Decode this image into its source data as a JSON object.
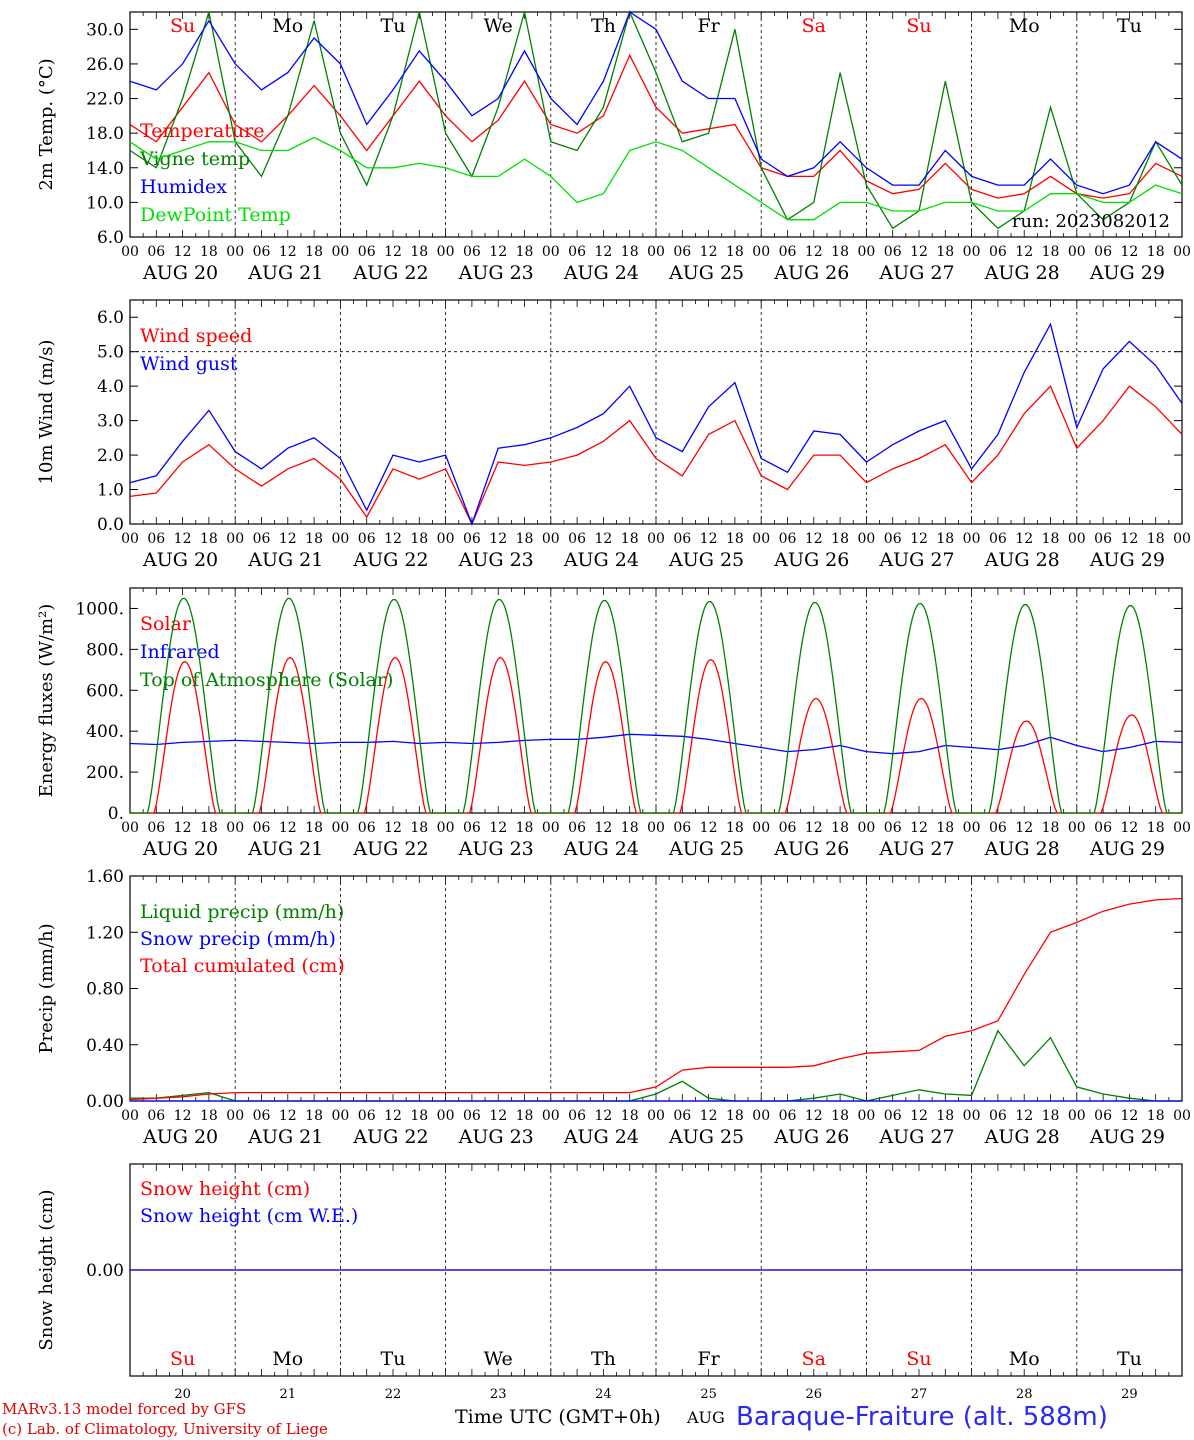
{
  "days": {
    "names": [
      "Su",
      "Mo",
      "Tu",
      "We",
      "Th",
      "Fr",
      "Sa",
      "Su",
      "Mo",
      "Tu"
    ],
    "weekend": [
      true,
      false,
      false,
      false,
      false,
      false,
      true,
      true,
      false,
      false
    ],
    "dates": [
      "AUG 20",
      "AUG 21",
      "AUG 22",
      "AUG 23",
      "AUG 24",
      "AUG 25",
      "AUG 26",
      "AUG 27",
      "AUG 28",
      "AUG 29"
    ],
    "numbers": [
      "20",
      "21",
      "22",
      "23",
      "24",
      "25",
      "26",
      "27",
      "28",
      "29"
    ],
    "hour_ticks": [
      "00",
      "06",
      "12",
      "18"
    ],
    "end_tick": "00"
  },
  "colors": {
    "red": "#ff0000",
    "green": "#008000",
    "blue": "#0000ff",
    "lightgreen": "#00e000",
    "purple": "#8000c0"
  },
  "chart_data": [
    {
      "type": "line",
      "ylabel": "2m Temp. (°C)",
      "ylim": [
        6.0,
        32.0
      ],
      "yticks": [
        "6.0",
        "10.0",
        "14.0",
        "18.0",
        "22.0",
        "26.0",
        "30.0"
      ],
      "annotation": "run: 2023082012",
      "x_hours_step": 6,
      "series": [
        {
          "name": "Temperature",
          "color": "#ff0000",
          "values": [
            19,
            17,
            21,
            25,
            19,
            17,
            20,
            23.5,
            20,
            16,
            20,
            24,
            20,
            17,
            19.5,
            24,
            19,
            18,
            20,
            27,
            21,
            18,
            18.5,
            19,
            14,
            13,
            13,
            16,
            12.5,
            11,
            11.5,
            14.5,
            11.5,
            10.5,
            11,
            13,
            11,
            10.5,
            11,
            14.5,
            13
          ]
        },
        {
          "name": "Vigne temp",
          "color": "#008000",
          "values": [
            16,
            14,
            22,
            32,
            17,
            13,
            20,
            31,
            18,
            12,
            20,
            32,
            18,
            13,
            21,
            32,
            17,
            16,
            21,
            32,
            25,
            17,
            18,
            30,
            14,
            8,
            10,
            25,
            12,
            7,
            9,
            24,
            10,
            7,
            9,
            21,
            11,
            8,
            10,
            17,
            12
          ]
        },
        {
          "name": "Humidex",
          "color": "#0000ff",
          "values": [
            24,
            23,
            26,
            31,
            26,
            23,
            25,
            29,
            26,
            19,
            23,
            27.5,
            24,
            20,
            22,
            27.5,
            22,
            19,
            24,
            32,
            30,
            24,
            22,
            22,
            15,
            13,
            14,
            17,
            14,
            12,
            12,
            16,
            13,
            12,
            12,
            15,
            12,
            11,
            12,
            17,
            15
          ]
        },
        {
          "name": "DewPoint Temp",
          "color": "#00e000",
          "values": [
            17,
            15,
            16,
            17,
            17,
            16,
            16,
            17.5,
            16,
            14,
            14,
            14.5,
            14,
            13,
            13,
            15,
            13,
            10,
            11,
            16,
            17,
            16,
            14,
            12,
            10,
            8,
            8,
            10,
            10,
            9,
            9,
            10,
            10,
            9,
            9,
            11,
            11,
            10,
            10,
            12,
            11
          ]
        }
      ]
    },
    {
      "type": "line",
      "ylabel": "10m Wind (m/s)",
      "ylim": [
        0.0,
        6.5
      ],
      "yticks": [
        "0.0",
        "1.0",
        "2.0",
        "3.0",
        "4.0",
        "5.0",
        "6.0"
      ],
      "hline": 5.0,
      "series": [
        {
          "name": "Wind speed",
          "color": "#ff0000",
          "values": [
            0.8,
            0.9,
            1.8,
            2.3,
            1.6,
            1.1,
            1.6,
            1.9,
            1.3,
            0.2,
            1.6,
            1.3,
            1.6,
            0.0,
            1.8,
            1.7,
            1.8,
            2.0,
            2.4,
            3.0,
            1.9,
            1.4,
            2.6,
            3.0,
            1.4,
            1.0,
            2.0,
            2.0,
            1.2,
            1.6,
            1.9,
            2.3,
            1.2,
            2.0,
            3.2,
            4.0,
            2.2,
            3.0,
            4.0,
            3.4,
            2.6
          ]
        },
        {
          "name": "Wind gust",
          "color": "#0000ff",
          "values": [
            1.2,
            1.4,
            2.4,
            3.3,
            2.1,
            1.6,
            2.2,
            2.5,
            1.9,
            0.4,
            2.0,
            1.8,
            2.0,
            0.0,
            2.2,
            2.3,
            2.5,
            2.8,
            3.2,
            4.0,
            2.5,
            2.1,
            3.4,
            4.1,
            1.9,
            1.5,
            2.7,
            2.6,
            1.8,
            2.3,
            2.7,
            3.0,
            1.6,
            2.6,
            4.4,
            5.8,
            2.8,
            4.5,
            5.3,
            4.6,
            3.5
          ]
        }
      ]
    },
    {
      "type": "line",
      "ylabel": "Energy fluxes (W/m²)",
      "ylim": [
        0,
        1100
      ],
      "yticks": [
        "0.",
        "200.",
        "400.",
        "600.",
        "800.",
        "1000."
      ],
      "series": [
        {
          "name": "Solar",
          "color": "#ff0000",
          "peaks": [
            740,
            760,
            760,
            760,
            740,
            750,
            560,
            560,
            450,
            480
          ]
        },
        {
          "name": "Infrared",
          "color": "#0000ff",
          "values": [
            340,
            335,
            345,
            350,
            355,
            350,
            345,
            340,
            345,
            345,
            350,
            340,
            345,
            340,
            345,
            355,
            360,
            360,
            370,
            385,
            380,
            375,
            360,
            340,
            320,
            300,
            310,
            330,
            300,
            290,
            300,
            330,
            320,
            310,
            330,
            370,
            330,
            300,
            320,
            350,
            345
          ]
        },
        {
          "name": "Top of Atmosphere (Solar)",
          "color": "#008000",
          "peaks": [
            1050,
            1050,
            1045,
            1045,
            1040,
            1035,
            1030,
            1025,
            1020,
            1015
          ]
        }
      ]
    },
    {
      "type": "line",
      "ylabel": "Precip (mm/h)",
      "ylim": [
        0.0,
        1.6
      ],
      "yticks": [
        "0.00",
        "0.40",
        "0.80",
        "1.20",
        "1.60"
      ],
      "series": [
        {
          "name": "Liquid precip (mm/h)",
          "color": "#008000",
          "values": [
            0.02,
            0.02,
            0.04,
            0.06,
            0.0,
            0.0,
            0.0,
            0.0,
            0.0,
            0.0,
            0.0,
            0.0,
            0.0,
            0.0,
            0.0,
            0.0,
            0.0,
            0.0,
            0.0,
            0.0,
            0.05,
            0.14,
            0.02,
            0.0,
            0.0,
            0.0,
            0.02,
            0.05,
            0.0,
            0.04,
            0.08,
            0.05,
            0.04,
            0.5,
            0.25,
            0.45,
            0.1,
            0.05,
            0.02,
            0.0,
            0.0
          ]
        },
        {
          "name": "Snow precip (mm/h)",
          "color": "#0000ff",
          "values": [
            0,
            0,
            0,
            0,
            0,
            0,
            0,
            0,
            0,
            0,
            0,
            0,
            0,
            0,
            0,
            0,
            0,
            0,
            0,
            0,
            0,
            0,
            0,
            0,
            0,
            0,
            0,
            0,
            0,
            0,
            0,
            0,
            0,
            0,
            0,
            0,
            0,
            0,
            0,
            0,
            0
          ]
        },
        {
          "name": "Total cumulated (cm)",
          "color": "#ff0000",
          "values": [
            0.01,
            0.02,
            0.03,
            0.05,
            0.06,
            0.06,
            0.06,
            0.06,
            0.06,
            0.06,
            0.06,
            0.06,
            0.06,
            0.06,
            0.06,
            0.06,
            0.06,
            0.06,
            0.06,
            0.06,
            0.1,
            0.22,
            0.24,
            0.24,
            0.24,
            0.24,
            0.25,
            0.3,
            0.34,
            0.35,
            0.36,
            0.46,
            0.5,
            0.57,
            0.9,
            1.2,
            1.27,
            1.35,
            1.4,
            1.43,
            1.44
          ]
        }
      ]
    },
    {
      "type": "line",
      "ylabel": "Snow height (cm)",
      "ylim": [
        -1.0,
        1.0
      ],
      "yticks": [
        "0.00"
      ],
      "series": [
        {
          "name": "Snow height (cm)",
          "color": "#ff0000",
          "values": [
            0,
            0,
            0,
            0,
            0,
            0,
            0,
            0,
            0,
            0,
            0,
            0,
            0,
            0,
            0,
            0,
            0,
            0,
            0,
            0,
            0,
            0,
            0,
            0,
            0,
            0,
            0,
            0,
            0,
            0,
            0,
            0,
            0,
            0,
            0,
            0,
            0,
            0,
            0,
            0,
            0
          ]
        },
        {
          "name": "Snow height (cm W.E.)",
          "color": "#0000ff",
          "values": [
            0,
            0,
            0,
            0,
            0,
            0,
            0,
            0,
            0,
            0,
            0,
            0,
            0,
            0,
            0,
            0,
            0,
            0,
            0,
            0,
            0,
            0,
            0,
            0,
            0,
            0,
            0,
            0,
            0,
            0,
            0,
            0,
            0,
            0,
            0,
            0,
            0,
            0,
            0,
            0,
            0
          ]
        }
      ]
    }
  ],
  "footer": {
    "credit_line1": "MARv3.13 model forced by GFS",
    "credit_line2": "(c) Lab. of Climatology, University of Liege",
    "time_axis_label": "Time UTC (GMT+0h)",
    "month_label": "AUG",
    "station": "Baraque-Fraiture (alt. 588m)"
  }
}
